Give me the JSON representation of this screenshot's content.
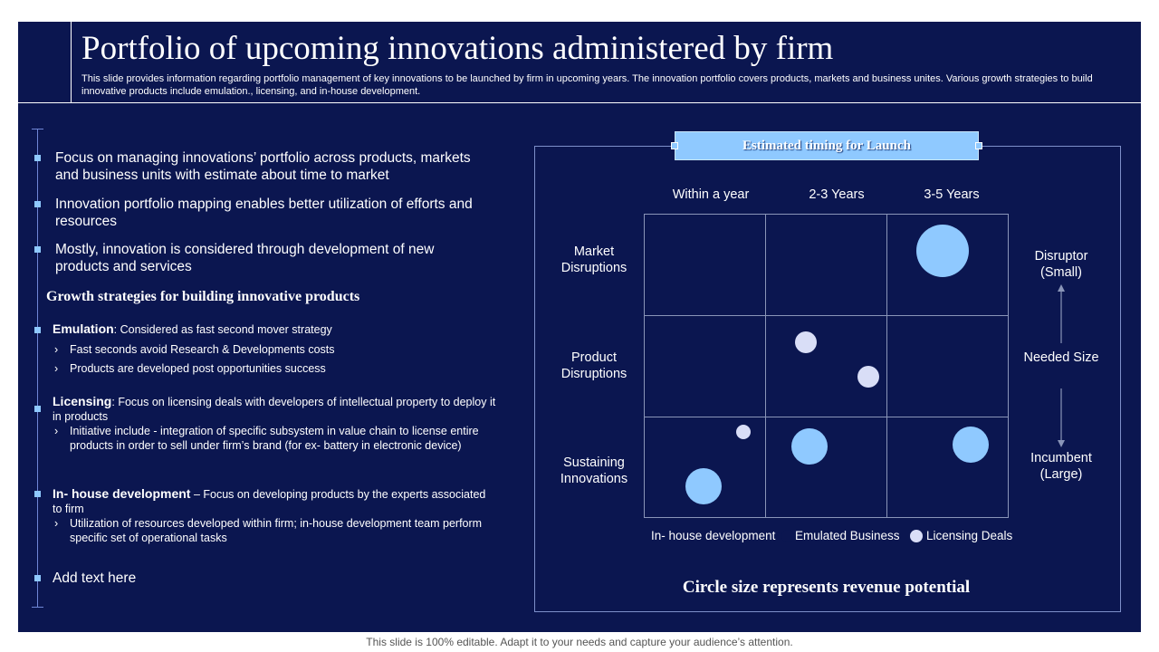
{
  "slide": {
    "title": "Portfolio of upcoming innovations administered by firm",
    "subtitle": "This slide provides information regarding portfolio management of key innovations to be launched by firm in upcoming years. The innovation portfolio covers products, markets and business unites. Various growth strategies to build innovative products include emulation., licensing, and in-house development.",
    "background_color": "#0b1650",
    "accent_color": "#8fc9ff"
  },
  "left": {
    "bullets": [
      "Focus on managing innovations’ portfolio across products, markets and business units with estimate about time to market",
      "Innovation portfolio mapping enables better utilization of efforts and resources",
      "Mostly, innovation is considered through development of new products and services"
    ],
    "growth_heading": "Growth strategies for building innovative products",
    "strategies": [
      {
        "name": "Emulation",
        "separator": ": ",
        "desc": "Considered as fast second mover strategy",
        "subs": [
          "Fast seconds avoid Research & Developments costs",
          "Products are developed post opportunities success"
        ]
      },
      {
        "name": "Licensing",
        "separator": ": ",
        "desc": "Focus on licensing deals with developers of intellectual property to deploy it in products",
        "subs": [
          "Initiative include - integration of specific subsystem in value chain to license entire products in order to sell under firm’s brand (for ex- battery in electronic device)"
        ]
      },
      {
        "name": "In- house development",
        "separator": " – ",
        "desc": "Focus on developing products by the experts associated to firm",
        "subs": [
          "Utilization of resources developed within firm; in-house development team perform specific set of operational tasks"
        ]
      }
    ],
    "chevron": "›",
    "add_text": "Add text here"
  },
  "diagram": {
    "header": "Estimated timing for Launch",
    "columns": [
      "Within a year",
      "2-3 Years",
      "3-5 Years"
    ],
    "rows": [
      "Market Disruptions",
      "Product Disruptions",
      "Sustaining Innovations"
    ],
    "size_axis": {
      "top": "Disruptor (Small)",
      "middle": "Needed Size",
      "bottom": "Incumbent (Large)"
    },
    "legend": [
      {
        "label": "In- house development",
        "color": "#8fc9ff"
      },
      {
        "label": "Emulated Business",
        "color": "#0b1650"
      },
      {
        "label": "Licensing Deals",
        "color": "#d9def7"
      }
    ],
    "bubbles": [
      {
        "row": 0,
        "col": 2,
        "type": "In- house development"
      },
      {
        "row": 1,
        "col": 1,
        "type": "Licensing Deals"
      },
      {
        "row": 1,
        "col": 1,
        "type": "Licensing Deals"
      },
      {
        "row": 2,
        "col": 0,
        "type": "Licensing Deals"
      },
      {
        "row": 2,
        "col": 0,
        "type": "In- house development"
      },
      {
        "row": 2,
        "col": 1,
        "type": "In- house development"
      },
      {
        "row": 2,
        "col": 2,
        "type": "In- house development"
      }
    ],
    "caption": "Circle size represents revenue potential"
  },
  "footer": "This slide is 100% editable. Adapt it to your needs and capture your audience’s attention."
}
